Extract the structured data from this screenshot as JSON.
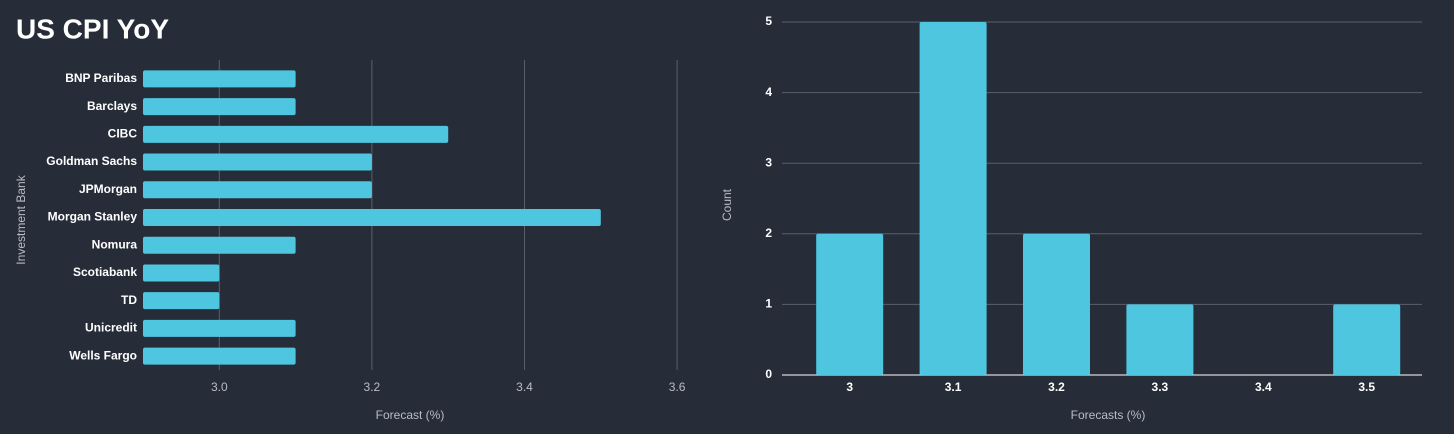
{
  "header": {
    "title": "US CPI YoY"
  },
  "chart_data": [
    {
      "type": "barh",
      "categories": [
        "BNP Paribas",
        "Barclays",
        "CIBC",
        "Goldman Sachs",
        "JPMorgan",
        "Morgan Stanley",
        "Nomura",
        "Scotiabank",
        "TD",
        "Unicredit",
        "Wells Fargo"
      ],
      "values": [
        3.1,
        3.1,
        3.3,
        3.2,
        3.2,
        3.5,
        3.1,
        3.0,
        3.0,
        3.1,
        3.1
      ],
      "color": "#4fc6e0",
      "xlim": [
        2.9,
        3.63
      ],
      "xticks": [
        {
          "value": 3,
          "label": "3.0"
        },
        {
          "value": 3.2,
          "label": "3.2"
        },
        {
          "value": 3.4,
          "label": "3.4"
        },
        {
          "value": 3.6,
          "label": "3.6"
        }
      ],
      "x_label": "Forecast (%)",
      "y_label": "Investment Bank",
      "grid": true
    },
    {
      "type": "bar",
      "categories": [
        "3",
        "3.1",
        "3.2",
        "3.3",
        "3.4",
        "3.5"
      ],
      "values": [
        2,
        5,
        2,
        1,
        0,
        1
      ],
      "color": "#4fc6e0",
      "ylim": [
        0,
        5
      ],
      "yticks": [
        0,
        1,
        2,
        3,
        4,
        5
      ],
      "x_label": "Forecasts (%)",
      "y_label": "Count",
      "grid": true
    }
  ]
}
